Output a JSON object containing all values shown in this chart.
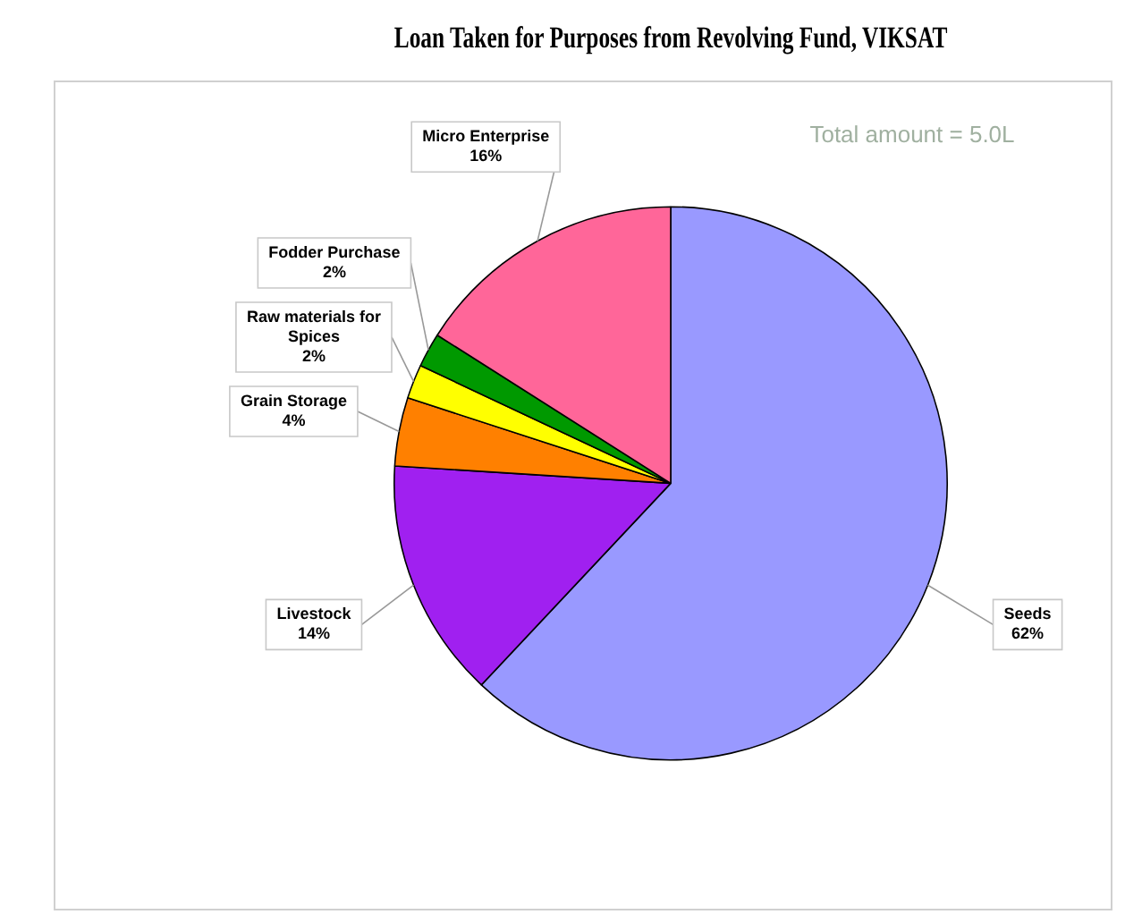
{
  "chart_data": {
    "type": "pie",
    "title": "Loan Taken for Purposes from Revolving Fund, VIKSAT",
    "categories": [
      "Seeds",
      "Livestock",
      "Grain Storage",
      "Raw materials for Spices",
      "Fodder Purchase",
      "Micro Enterprise"
    ],
    "values": [
      62,
      14,
      4,
      2,
      2,
      16
    ],
    "value_labels": [
      "62%",
      "14%",
      "4%",
      "2%",
      "2%",
      "16%"
    ],
    "colors": [
      "#9999ff",
      "#a020f0",
      "#ff8000",
      "#ffff00",
      "#009900",
      "#ff6699"
    ],
    "annotations": [
      "Total amount = 5.0L"
    ],
    "legend": false
  }
}
